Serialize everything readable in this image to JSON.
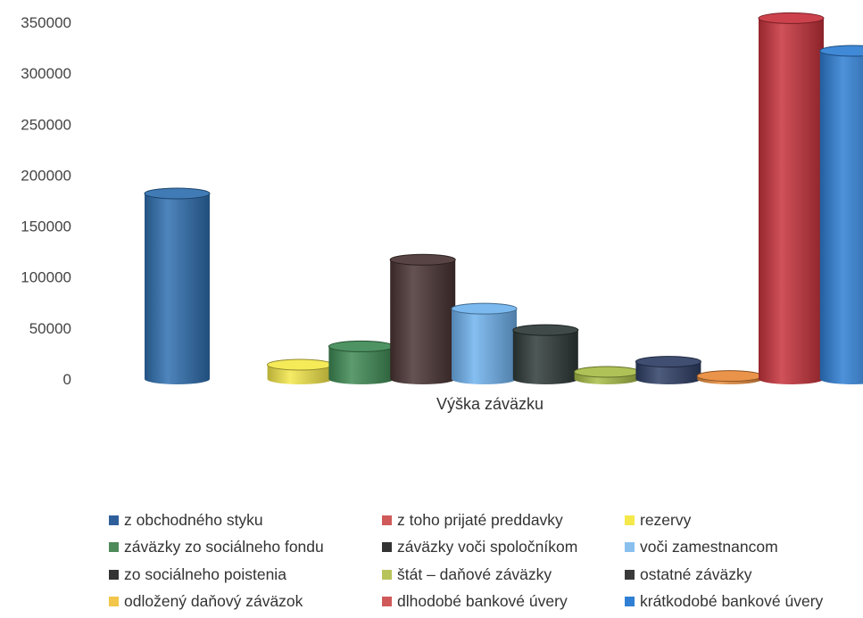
{
  "chart_data": {
    "type": "bar",
    "style": "3d-cylinder",
    "xlabel": "Výška záväzku",
    "ylabel": "",
    "title": "",
    "ylim": [
      0,
      350000
    ],
    "yticks": [
      0,
      50000,
      100000,
      150000,
      200000,
      250000,
      300000,
      350000
    ],
    "ytick_labels": [
      "0",
      "50000",
      "100000",
      "150000",
      "200000",
      "250000",
      "300000",
      "350000"
    ],
    "grid": false,
    "legend_position": "bottom",
    "series": [
      {
        "name": "z obchodného styku",
        "value": 182000,
        "color": "#2f6fb0"
      },
      {
        "name": "z toho prijaté preddavky",
        "value": 0,
        "color": "#d15050"
      },
      {
        "name": "rezervy",
        "value": 14000,
        "color": "#f4e84a"
      },
      {
        "name": "záväzky zo sociálneho fondu",
        "value": 32000,
        "color": "#3f8a55"
      },
      {
        "name": "záväzky voči spoločníkom",
        "value": 117000,
        "color": "#4a3434"
      },
      {
        "name": "voči zamestnancom",
        "value": 69000,
        "color": "#6fb3ee"
      },
      {
        "name": "zo sociálneho poistenia",
        "value": 48000,
        "color": "#2f3b39"
      },
      {
        "name": "štát – daňové záväzky",
        "value": 7000,
        "color": "#a8bd48"
      },
      {
        "name": "ostatné záväzky",
        "value": 17000,
        "color": "#2f3f66"
      },
      {
        "name": "odložený daňový záväzok",
        "value": 3000,
        "color": "#e88a3a"
      },
      {
        "name": "dlhodobé bankové úvery",
        "value": 354000,
        "color": "#c8323c"
      },
      {
        "name": "krátkodobé bankové úvery",
        "value": 322000,
        "color": "#2f7fd4"
      }
    ]
  },
  "legend": {
    "items": [
      {
        "label": "z obchodného styku",
        "color": "#2f5f9a"
      },
      {
        "label": "z toho prijaté preddavky",
        "color": "#d05a5a"
      },
      {
        "label": "rezervy",
        "color": "#f4e84a"
      },
      {
        "label": "záväzky zo sociálneho fondu",
        "color": "#4f8a5a"
      },
      {
        "label": "záväzky voči spoločníkom",
        "color": "#333333"
      },
      {
        "label": "voči zamestnancom",
        "color": "#8ac0ee"
      },
      {
        "label": "zo sociálneho poistenia",
        "color": "#333333"
      },
      {
        "label": "štát – daňové záväzky",
        "color": "#b8c45a"
      },
      {
        "label": "ostatné záväzky",
        "color": "#3a3a3a"
      },
      {
        "label": "odložený daňový záväzok",
        "color": "#f2c64a"
      },
      {
        "label": "dlhodobé bankové úvery",
        "color": "#d05a5a"
      },
      {
        "label": "krátkodobé bankové úvery",
        "color": "#2f7fd4"
      }
    ]
  }
}
